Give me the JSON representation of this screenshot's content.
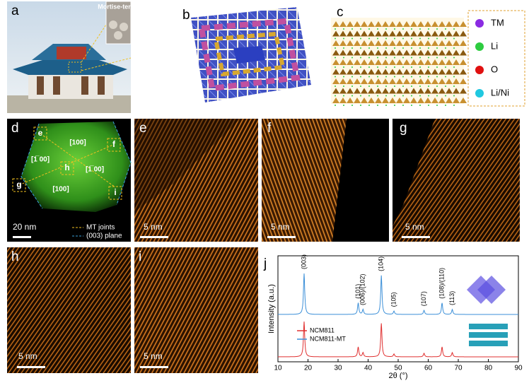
{
  "panels": {
    "a": {
      "label": "a",
      "inset": "Mortise-tenon"
    },
    "b": {
      "label": "b"
    },
    "c": {
      "label": "c"
    },
    "legend": [
      {
        "name": "TM",
        "color": "#8a2be2"
      },
      {
        "name": "Li",
        "color": "#2ecc40"
      },
      {
        "name": "O",
        "color": "#e01010"
      },
      {
        "name": "Li/Ni",
        "color": "#20c8e0"
      }
    ],
    "d": {
      "label": "d",
      "markers": [
        "e",
        "f",
        "h",
        "g",
        "i"
      ],
      "zones": [
        "[100]",
        "[1̅ 00]",
        "[1̅ 00]",
        "[100]"
      ],
      "scale": "20 nm",
      "legend": [
        "MT joints",
        "(003) plane"
      ]
    },
    "e": {
      "label": "e",
      "scale": "5 nm"
    },
    "f": {
      "label": "f",
      "scale": "5 nm"
    },
    "g": {
      "label": "g",
      "scale": "5 nm"
    },
    "h": {
      "label": "h",
      "scale": "5 nm"
    },
    "i": {
      "label": "i",
      "scale": "5 nm"
    },
    "j": {
      "label": "j",
      "xlabel": "2θ (°)",
      "ylabel": "Intensity (a.u.)",
      "xlim": [
        10,
        90
      ],
      "xticks": [
        10,
        20,
        30,
        40,
        50,
        60,
        70,
        80,
        90
      ],
      "series": [
        {
          "name": "NCM811",
          "color": "#e03030"
        },
        {
          "name": "NCM811-MT",
          "color": "#3b8fd8"
        }
      ],
      "peaks": [
        {
          "label": "(003)",
          "x": 18.7,
          "intensity": 1.0
        },
        {
          "label": "(101)",
          "x": 36.7,
          "intensity": 0.28
        },
        {
          "label": "(006)/(102)",
          "x": 38.3,
          "intensity": 0.12
        },
        {
          "label": "(104)",
          "x": 44.4,
          "intensity": 0.95
        },
        {
          "label": "(105)",
          "x": 48.6,
          "intensity": 0.08
        },
        {
          "label": "(107)",
          "x": 58.6,
          "intensity": 0.1
        },
        {
          "label": "(108)/(110)",
          "x": 64.6,
          "intensity": 0.28
        },
        {
          "label": "(113)",
          "x": 68.0,
          "intensity": 0.12
        }
      ]
    }
  }
}
